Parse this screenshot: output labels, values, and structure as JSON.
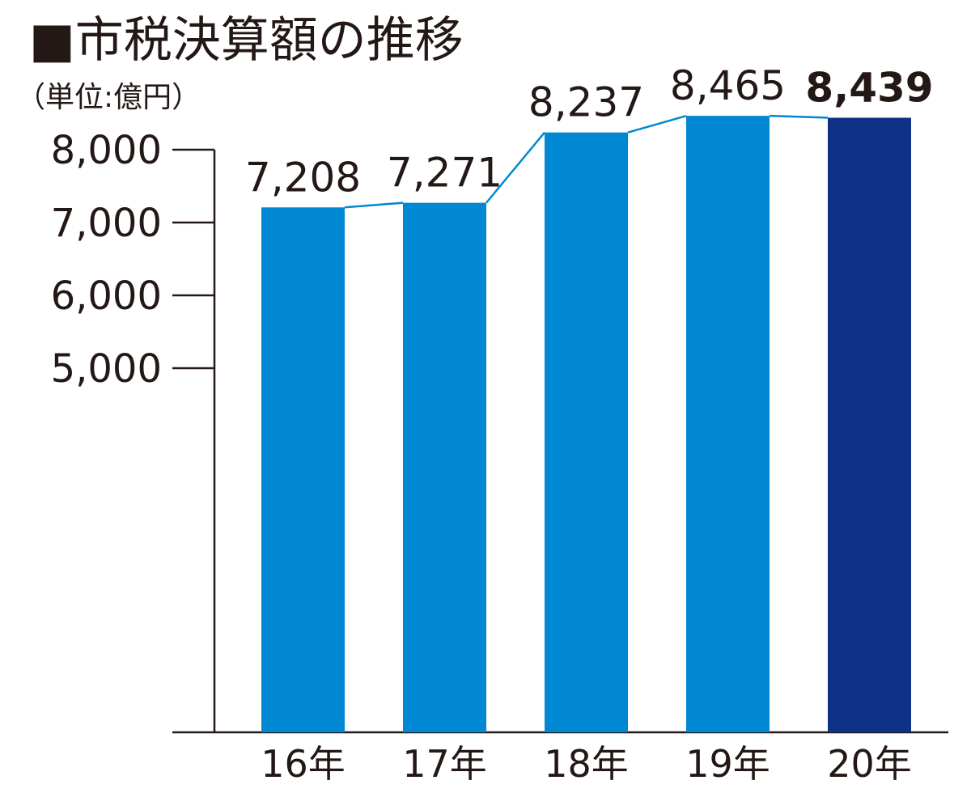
{
  "title": "■市税決算額の推移",
  "unit_label": "（単位:億円）",
  "colors": {
    "bar": "#0088d2",
    "bar_highlight": "#0e3286",
    "trend_line": "#0088d2",
    "axis": "#231815",
    "text": "#231815"
  },
  "chart_data": {
    "type": "bar",
    "title": "■市税決算額の推移",
    "ylabel": "（単位:億円）",
    "xlabel": "",
    "categories": [
      "16年",
      "17年",
      "18年",
      "19年",
      "20年"
    ],
    "values": [
      7208,
      7271,
      8237,
      8465,
      8439
    ],
    "value_labels": [
      "7,208",
      "7,271",
      "8,237",
      "8,465",
      "8,439"
    ],
    "highlight_index": 4,
    "yticks": [
      5000,
      6000,
      7000,
      8000
    ],
    "ytick_labels": [
      "5,000",
      "6,000",
      "7,000",
      "8,000"
    ],
    "trend_line": true,
    "grid": false,
    "legend": "none"
  }
}
